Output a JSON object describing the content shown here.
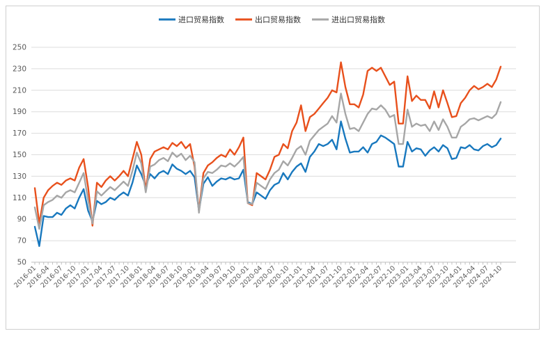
{
  "chart_data": {
    "type": "line",
    "title": "",
    "x_frequency": "monthly",
    "x_start": "2016-01",
    "x_end": "2024-10",
    "x_tick_labels": [
      "2016-01",
      "2016-04",
      "2016-07",
      "2016-10",
      "2017-01",
      "2017-04",
      "2017-07",
      "2017-10",
      "2018-01",
      "2018-04",
      "2018-07",
      "2018-10",
      "2019-01",
      "2019-04",
      "2019-07",
      "2019-10",
      "2020-01",
      "2020-04",
      "2020-07",
      "2020-10",
      "2021-01",
      "2021-04",
      "2021-07",
      "2021-10",
      "2022-01",
      "2022-04",
      "2022-07",
      "2022-10",
      "2023-01",
      "2023-04",
      "2023-07",
      "2023-10",
      "2024-01",
      "2024-04",
      "2024-07",
      "2024-10"
    ],
    "ylim": [
      50,
      250
    ],
    "ytick_step": 20,
    "y_tick_labels": [
      "50",
      "70",
      "90",
      "110",
      "130",
      "150",
      "170",
      "190",
      "210",
      "230",
      "250"
    ],
    "grid": true,
    "legend_position": "top",
    "series": [
      {
        "name": "进口贸易指数",
        "color": "#1878BE",
        "values": [
          83,
          65,
          93,
          92,
          92,
          96,
          94,
          100,
          103,
          100,
          110,
          118,
          98,
          88,
          107,
          104,
          106,
          110,
          108,
          112,
          115,
          112,
          124,
          140,
          132,
          121,
          132,
          128,
          133,
          135,
          132,
          141,
          137,
          135,
          132,
          135,
          129,
          98,
          123,
          129,
          121,
          125,
          128,
          127,
          129,
          127,
          128,
          136,
          106,
          104,
          115,
          112,
          109,
          117,
          122,
          124,
          133,
          127,
          134,
          139,
          142,
          134,
          148,
          153,
          160,
          158,
          160,
          164,
          155,
          181,
          165,
          152,
          153,
          153,
          157,
          152,
          160,
          162,
          168,
          166,
          163,
          160,
          139,
          139,
          162,
          153,
          156,
          155,
          149,
          154,
          157,
          153,
          159,
          156,
          146,
          147,
          157,
          156,
          159,
          155,
          154,
          158,
          160,
          157,
          159,
          165
        ]
      },
      {
        "name": "出口贸易指数",
        "color": "#E8501C",
        "values": [
          119,
          86,
          110,
          117,
          121,
          124,
          122,
          126,
          128,
          126,
          138,
          146,
          120,
          84,
          124,
          120,
          126,
          130,
          126,
          130,
          135,
          130,
          146,
          162,
          150,
          117,
          146,
          153,
          155,
          157,
          155,
          161,
          158,
          162,
          156,
          160,
          139,
          98,
          133,
          140,
          143,
          147,
          150,
          148,
          155,
          150,
          157,
          166,
          105,
          103,
          133,
          130,
          127,
          136,
          148,
          150,
          160,
          156,
          172,
          180,
          196,
          172,
          185,
          188,
          193,
          198,
          203,
          210,
          208,
          236,
          213,
          197,
          197,
          194,
          206,
          228,
          231,
          228,
          231,
          223,
          215,
          218,
          179,
          179,
          223,
          200,
          205,
          201,
          201,
          193,
          209,
          194,
          210,
          198,
          185,
          186,
          198,
          203,
          210,
          214,
          211,
          213,
          216,
          213,
          220,
          232
        ]
      },
      {
        "name": "进出口贸易指数",
        "color": "#A6A6A6",
        "values": [
          101,
          81,
          103,
          106,
          108,
          112,
          110,
          115,
          117,
          115,
          124,
          133,
          108,
          86,
          116,
          112,
          116,
          120,
          117,
          121,
          125,
          121,
          135,
          152,
          142,
          115,
          139,
          141,
          145,
          147,
          144,
          152,
          148,
          151,
          145,
          149,
          143,
          96,
          128,
          134,
          133,
          136,
          140,
          139,
          142,
          139,
          143,
          148,
          105,
          104,
          124,
          121,
          118,
          127,
          133,
          136,
          144,
          140,
          147,
          155,
          158,
          150,
          163,
          168,
          173,
          176,
          179,
          186,
          180,
          207,
          188,
          174,
          175,
          172,
          180,
          188,
          193,
          192,
          196,
          192,
          185,
          187,
          160,
          160,
          192,
          176,
          179,
          177,
          178,
          172,
          181,
          173,
          183,
          176,
          166,
          166,
          176,
          179,
          183,
          184,
          182,
          184,
          186,
          184,
          188,
          199
        ]
      }
    ]
  },
  "colors": {
    "frame": "#CFCFCF",
    "grid": "#DCDCDC",
    "axis": "#BFBFBF",
    "tick_text": "#595959",
    "legend_text": "#333333",
    "background": "#FFFFFF"
  }
}
